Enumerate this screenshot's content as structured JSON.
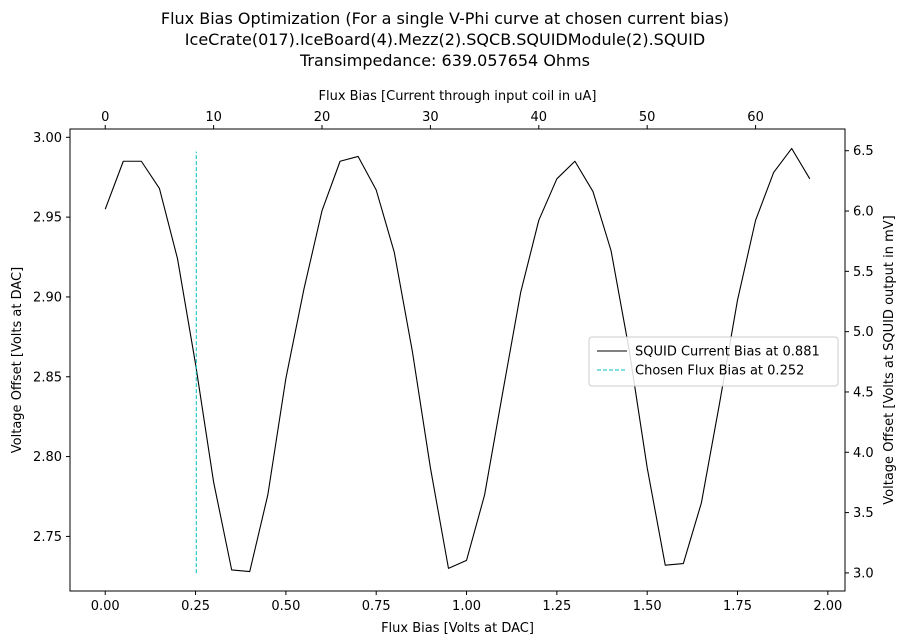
{
  "chart_data": {
    "type": "line",
    "title_lines": [
      "Flux Bias Optimization (For a single V-Phi curve at chosen current bias)",
      "IceCrate(017).IceBoard(4).Mezz(2).SQCB.SQUIDModule(2).SQUID",
      "Transimpedance: 639.057654 Ohms"
    ],
    "xlabel": "Flux Bias [Volts at DAC]",
    "ylabel": "Voltage Offset [Volts at DAC]",
    "x2label": "Flux Bias [Current through input coil in uA]",
    "y2label": "Voltage Offset [Volts at SQUID output in mV]",
    "xlim": [
      -0.0975,
      2.0475
    ],
    "ylim": [
      2.7158,
      3.0052
    ],
    "x2lim": [
      -3.25,
      68.25
    ],
    "y2lim": [
      2.85,
      6.68
    ],
    "x_ticks": [
      "0.00",
      "0.25",
      "0.50",
      "0.75",
      "1.00",
      "1.25",
      "1.50",
      "1.75",
      "2.00"
    ],
    "y_ticks": [
      "2.75",
      "2.80",
      "2.85",
      "2.90",
      "2.95",
      "3.00"
    ],
    "x2_ticks": [
      "0",
      "10",
      "20",
      "30",
      "40",
      "50",
      "60"
    ],
    "y2_ticks": [
      "3.0",
      "3.5",
      "4.0",
      "4.5",
      "5.0",
      "5.5",
      "6.0",
      "6.5"
    ],
    "series": [
      {
        "name": "SQUID Current Bias at 0.881",
        "color": "#000000",
        "style": "solid",
        "x": [
          0.0,
          0.05,
          0.1,
          0.15,
          0.2,
          0.25,
          0.3,
          0.35,
          0.4,
          0.45,
          0.5,
          0.55,
          0.6,
          0.65,
          0.7,
          0.75,
          0.8,
          0.85,
          0.9,
          0.95,
          1.0,
          1.05,
          1.1,
          1.15,
          1.2,
          1.25,
          1.3,
          1.35,
          1.4,
          1.45,
          1.5,
          1.55,
          1.6,
          1.65,
          1.7,
          1.75,
          1.8,
          1.85,
          1.9,
          1.95
        ],
        "values": [
          2.955,
          2.985,
          2.985,
          2.968,
          2.924,
          2.858,
          2.784,
          2.729,
          2.728,
          2.776,
          2.849,
          2.905,
          2.954,
          2.985,
          2.988,
          2.967,
          2.928,
          2.866,
          2.793,
          2.73,
          2.735,
          2.776,
          2.84,
          2.903,
          2.948,
          2.974,
          2.985,
          2.966,
          2.929,
          2.867,
          2.793,
          2.732,
          2.733,
          2.771,
          2.833,
          2.898,
          2.948,
          2.978,
          2.993,
          2.974
        ]
      },
      {
        "name": "Chosen Flux Bias at 0.252",
        "color": "#00bfbf",
        "style": "dashed",
        "x": [
          0.252,
          0.252
        ],
        "values": [
          2.727,
          2.991
        ]
      }
    ],
    "legend": {
      "position": "center-right",
      "entries": [
        "SQUID Current Bias at 0.881",
        "Chosen Flux Bias at 0.252"
      ]
    },
    "grid": false
  }
}
